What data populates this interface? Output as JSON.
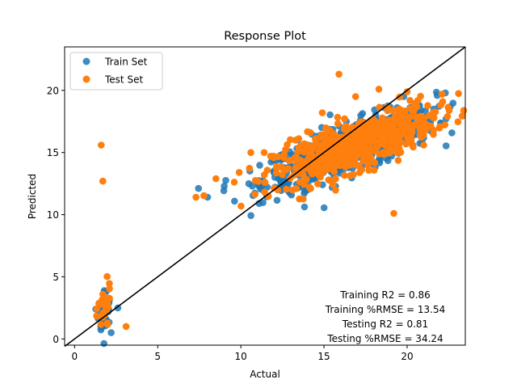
{
  "chart_data": {
    "type": "scatter",
    "title": "Response Plot",
    "xlabel": "Actual",
    "ylabel": "Predicted",
    "xlim": [
      -0.6,
      23.5
    ],
    "ylim": [
      -0.5,
      23.5
    ],
    "xticks": [
      0,
      5,
      10,
      15,
      20
    ],
    "yticks": [
      0,
      5,
      10,
      15,
      20
    ],
    "grid": false,
    "legend_position": "top-left",
    "reference_line": {
      "from": [
        -0.6,
        -0.6
      ],
      "to": [
        23.5,
        23.5
      ],
      "color": "#000000"
    },
    "series": [
      {
        "name": "Train Set",
        "color": "#1f77b4",
        "clusters": [
          {
            "cx": 16.5,
            "cy": 15.3,
            "sx": 2.6,
            "sy": 1.6,
            "rho": 0.78,
            "n": 650
          },
          {
            "cx": 1.8,
            "cy": 2.2,
            "sx": 0.18,
            "sy": 0.9,
            "rho": 0.0,
            "n": 45
          }
        ],
        "points": [
          [
            8.0,
            11.4
          ],
          [
            11.1,
            10.9
          ],
          [
            19.8,
            19.5
          ],
          [
            22.3,
            19.8
          ],
          [
            20.9,
            15.8
          ],
          [
            21.6,
            18.5
          ],
          [
            2.2,
            0.5
          ],
          [
            2.6,
            2.5
          ],
          [
            1.6,
            0.9
          ],
          [
            9.0,
            12.3
          ],
          [
            12.5,
            12.2
          ]
        ]
      },
      {
        "name": "Test Set",
        "color": "#ff7f0e",
        "clusters": [
          {
            "cx": 16.8,
            "cy": 15.6,
            "sx": 2.4,
            "sy": 1.5,
            "rho": 0.75,
            "n": 580
          },
          {
            "cx": 1.8,
            "cy": 2.4,
            "sx": 0.18,
            "sy": 0.9,
            "rho": 0.0,
            "n": 40
          }
        ],
        "points": [
          [
            15.9,
            21.3
          ],
          [
            19.2,
            10.1
          ],
          [
            1.6,
            15.6
          ],
          [
            1.7,
            12.7
          ],
          [
            3.1,
            1.0
          ],
          [
            7.3,
            11.4
          ],
          [
            8.5,
            12.9
          ],
          [
            9.9,
            13.4
          ],
          [
            10.6,
            15.0
          ],
          [
            11.4,
            15.0
          ],
          [
            22.1,
            19.7
          ],
          [
            21.6,
            16.8
          ],
          [
            21.0,
            15.6
          ],
          [
            18.3,
            20.1
          ],
          [
            14.9,
            18.2
          ],
          [
            13.3,
            16.0
          ],
          [
            12.6,
            14.8
          ],
          [
            14.2,
            12.1
          ],
          [
            20.0,
            19.9
          ],
          [
            16.9,
            19.5
          ]
        ]
      }
    ],
    "annotation_lines": [
      "Training R2 = 0.86",
      "Training %RMSE = 13.54",
      "Testing R2 = 0.81",
      "Testing %RMSE = 34.24"
    ]
  }
}
